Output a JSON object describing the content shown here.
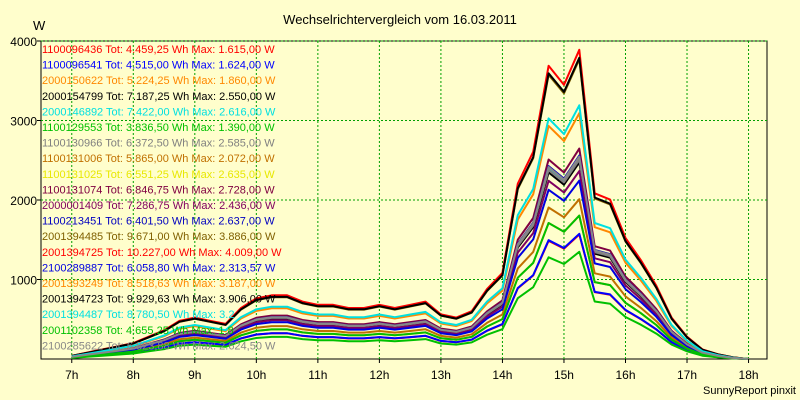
{
  "chart_data": {
    "type": "line",
    "title": "Wechselrichtervergleich vom 16.03.2011",
    "ylabel": "W",
    "xlabel": "",
    "ylim": [
      0,
      4000
    ],
    "xlim": [
      6.5,
      18.3
    ],
    "yticks": [
      1000,
      2000,
      3000,
      4000
    ],
    "xticks": [
      {
        "v": 7,
        "label": "7h"
      },
      {
        "v": 8,
        "label": "8h"
      },
      {
        "v": 9,
        "label": "9h"
      },
      {
        "v": 10,
        "label": "10h"
      },
      {
        "v": 11,
        "label": "11h"
      },
      {
        "v": 12,
        "label": "12h"
      },
      {
        "v": 13,
        "label": "13h"
      },
      {
        "v": 14,
        "label": "14h"
      },
      {
        "v": 15,
        "label": "15h"
      },
      {
        "v": 16,
        "label": "16h"
      },
      {
        "v": 17,
        "label": "17h"
      },
      {
        "v": 18,
        "label": "18h"
      }
    ],
    "grid": true,
    "legend_position": "top-left",
    "credit": "SunnyReport pinxit",
    "x": [
      7.0,
      7.25,
      7.5,
      7.75,
      8.0,
      8.25,
      8.5,
      8.75,
      9.0,
      9.25,
      9.5,
      9.75,
      10.0,
      10.25,
      10.5,
      10.75,
      11.0,
      11.25,
      11.5,
      11.75,
      12.0,
      12.25,
      12.5,
      12.75,
      13.0,
      13.25,
      13.5,
      13.75,
      14.0,
      14.25,
      14.5,
      14.75,
      15.0,
      15.25,
      15.5,
      15.75,
      16.0,
      16.25,
      16.5,
      16.75,
      17.0,
      17.25,
      17.5,
      17.75,
      18.0
    ],
    "series": [
      {
        "name": "1100096436",
        "label": "1100096436 Tot: 4.459,25 Wh Max: 1.615,00 W",
        "color": "#ff0000",
        "peak": 1615,
        "total": 4459.25
      },
      {
        "name": "1100096541",
        "label": "1100096541 Tot: 4.515,00 Wh Max: 1.624,00 W",
        "color": "#0000ff",
        "peak": 1624,
        "total": 4515.0
      },
      {
        "name": "2000150622",
        "label": "2000150622 Tot: 5.224,25 Wh Max: 1.860,00 W",
        "color": "#ff8800",
        "peak": 1860,
        "total": 5224.25
      },
      {
        "name": "2000154799",
        "label": "2000154799 Tot: 7.187,25 Wh Max: 2.550,00 W",
        "color": "#000000",
        "peak": 2550,
        "total": 7187.25
      },
      {
        "name": "2000146892",
        "label": "2000146892 Tot: 7.422,00 Wh Max: 2.616,00 W",
        "color": "#00e0e0",
        "peak": 2616,
        "total": 7422.0
      },
      {
        "name": "1100129553",
        "label": "1100129553 Tot: 3.836,50 Wh Max: 1.390,00 W",
        "color": "#00c000",
        "peak": 1390,
        "total": 3836.5
      },
      {
        "name": "1100130966",
        "label": "1100130966 Tot: 6.372,50 Wh Max: 2.585,00 W",
        "color": "#808080",
        "peak": 2585,
        "total": 6372.5
      },
      {
        "name": "1100131006",
        "label": "1100131006 Tot: 5.865,00 Wh Max: 2.072,00 W",
        "color": "#c07000",
        "peak": 2072,
        "total": 5865.0
      },
      {
        "name": "1100131025",
        "label": "1100131025 Tot: 6.551,25 Wh Max: 2.635,00 W",
        "color": "#e8e800",
        "peak": 2635,
        "total": 6551.25
      },
      {
        "name": "1100131074",
        "label": "1100131074 Tot: 6.846,75 Wh Max: 2.728,00 W",
        "color": "#800040",
        "peak": 2728,
        "total": 6846.75
      },
      {
        "name": "2000001409",
        "label": "2000001409 Tot: 7.286,75 Wh Max: 2.436,00 W",
        "color": "#800060",
        "peak": 2436,
        "total": 7286.75
      },
      {
        "name": "1100213451",
        "label": "1100213451 Tot: 6.401,50 Wh Max: 2.637,00 W",
        "color": "#0000c0",
        "peak": 2637,
        "total": 6401.5
      },
      {
        "name": "2001394485",
        "label": "2001394485 Tot: 9.671,00 Wh Max: 3.886,00 W",
        "color": "#806000",
        "peak": 3886,
        "total": 9671.0
      },
      {
        "name": "2001394725",
        "label": "2001394725 Tot: 10.227,00 Wh Max: 4.009,00 W",
        "color": "#ff0000",
        "peak": 4009,
        "total": 10227.0
      },
      {
        "name": "2100289887",
        "label": "2100289887 Tot: 6.058,80 Wh Max: 2.313,57 W",
        "color": "#0000e0",
        "peak": 2313.57,
        "total": 6058.8
      },
      {
        "name": "2001393249",
        "label": "2001393249 Tot: 8.518,63 Wh Max: 3.187,00 W",
        "color": "#ff8800",
        "peak": 3187,
        "total": 8518.63
      },
      {
        "name": "2001394723",
        "label": "2001394723 Tot: 9.929,63 Wh Max: 3.906,00 W",
        "color": "#000000",
        "peak": 3906,
        "total": 9929.63
      },
      {
        "name": "2001394487",
        "label": "2001394487 Tot: 8.780,50 Wh Max: 3.2",
        "color": "#00e0e0",
        "peak": 3290,
        "total": 8780.5
      },
      {
        "name": "2001102358",
        "label": "2001102358 Tot: 4.655,25 Wh Max: 1.8",
        "color": "#00c000",
        "peak": 1860,
        "total": 4655.25
      },
      {
        "name": "2100285622",
        "label": "2100285622 Tot: 6.823,88 Wh Max: 2.624,50 W",
        "color": "#888888",
        "peak": 2624.5,
        "total": 6823.88
      }
    ]
  }
}
